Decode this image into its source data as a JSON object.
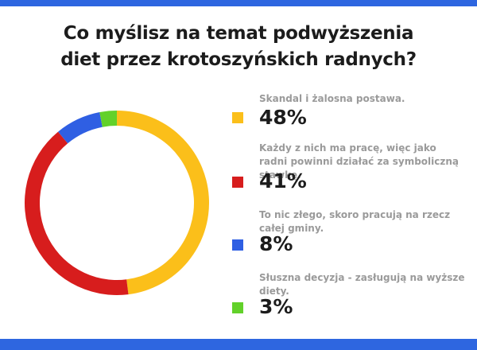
{
  "title": {
    "line1": "Co myślisz na temat podwyższenia",
    "line2": "diet przez krotoszyńskich radnych?"
  },
  "colors": {
    "frame": "#2e66e0",
    "title_text": "#1c1c1c",
    "label_text": "#9a9a9a"
  },
  "chart_data": {
    "type": "pie",
    "style": "donut",
    "title": "Co myślisz na temat podwyższenia diet przez krotoszyńskich radnych?",
    "slices": [
      {
        "label": "Skandal i żalosna postawa.",
        "value": 48,
        "display": "48%",
        "color": "#fbbf1a"
      },
      {
        "label": "Każdy z nich ma pracę, więc jako radni powinni działać za symboliczną stawkę.",
        "value": 41,
        "display": "41%",
        "color": "#d71d1d"
      },
      {
        "label": "To nic złego, skoro pracują na rzecz całej gminy.",
        "value": 8,
        "display": "8%",
        "color": "#2f5fe3"
      },
      {
        "label": "Słuszna decyzja - zasługują na wyższe diety.",
        "value": 3,
        "display": "3%",
        "color": "#62d12a"
      }
    ],
    "legend_position": "right"
  }
}
